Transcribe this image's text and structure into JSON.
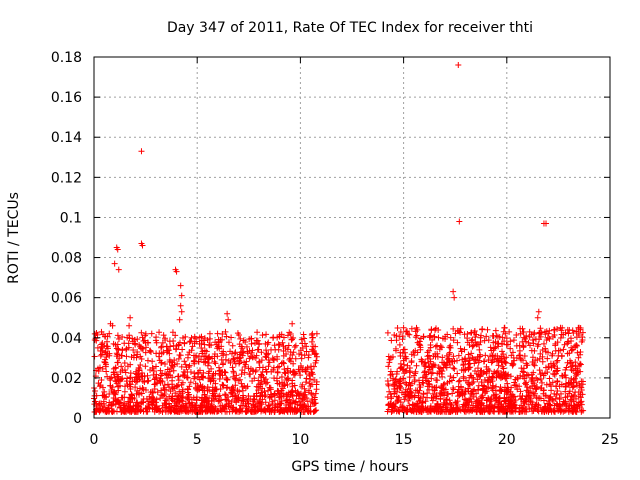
{
  "chart_data": {
    "type": "scatter",
    "title": "Day 347 of 2011, Rate Of TEC Index for receiver thti",
    "xlabel": "GPS time / hours",
    "ylabel": "ROTI / TECUs",
    "xlim": [
      0,
      25
    ],
    "ylim": [
      0,
      0.18
    ],
    "xticks": [
      0,
      5,
      10,
      15,
      20,
      25
    ],
    "yticks": [
      0,
      0.02,
      0.04,
      0.06,
      0.08,
      0.1,
      0.12,
      0.14,
      0.16,
      0.18
    ],
    "xtick_labels": [
      "0",
      "5",
      "10",
      "15",
      "20",
      "25"
    ],
    "ytick_labels": [
      "0",
      "0.02",
      "0.04",
      "0.06",
      "0.08",
      "0.1",
      "0.12",
      "0.14",
      "0.16",
      "0.18"
    ],
    "grid": true,
    "marker": "plus",
    "color": "#ff0000",
    "series": [
      {
        "name": "ROTI",
        "outliers": [
          [
            2.3,
            0.133
          ],
          [
            2.3,
            0.087
          ],
          [
            2.35,
            0.086
          ],
          [
            1.1,
            0.085
          ],
          [
            1.15,
            0.084
          ],
          [
            1.0,
            0.077
          ],
          [
            1.2,
            0.074
          ],
          [
            3.95,
            0.074
          ],
          [
            4.0,
            0.073
          ],
          [
            4.2,
            0.066
          ],
          [
            4.25,
            0.061
          ],
          [
            4.2,
            0.056
          ],
          [
            4.25,
            0.053
          ],
          [
            4.15,
            0.049
          ],
          [
            0.8,
            0.047
          ],
          [
            0.9,
            0.046
          ],
          [
            1.7,
            0.046
          ],
          [
            1.75,
            0.05
          ],
          [
            6.45,
            0.052
          ],
          [
            6.5,
            0.049
          ],
          [
            9.6,
            0.047
          ],
          [
            10.8,
            0.042
          ],
          [
            17.65,
            0.176
          ],
          [
            17.7,
            0.098
          ],
          [
            21.8,
            0.097
          ],
          [
            21.9,
            0.097
          ],
          [
            17.4,
            0.063
          ],
          [
            17.45,
            0.06
          ],
          [
            15.0,
            0.045
          ],
          [
            19.9,
            0.045
          ],
          [
            21.5,
            0.05
          ],
          [
            21.55,
            0.053
          ],
          [
            22.6,
            0.045
          ],
          [
            23.5,
            0.045
          ]
        ],
        "dense_segments": [
          {
            "x_start": 0.0,
            "x_end": 10.8,
            "y_min": 0.003,
            "y_max": 0.043,
            "count": 1500
          },
          {
            "x_start": 14.2,
            "x_end": 23.7,
            "y_min": 0.003,
            "y_max": 0.045,
            "count": 1400
          }
        ]
      }
    ]
  }
}
